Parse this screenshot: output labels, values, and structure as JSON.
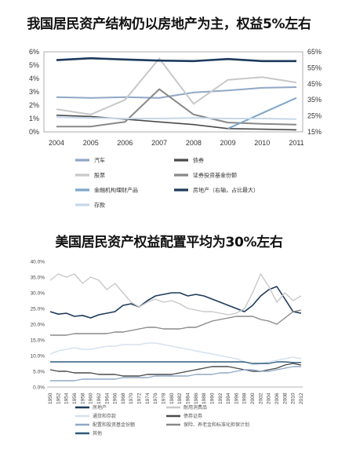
{
  "titles": {
    "chart1": "我国居民资产结构仍以房地产为主，权益5%左右",
    "chart2": "美国居民资产权益配置平均为30%左右"
  },
  "chart_data": [
    {
      "type": "line",
      "x": [
        "2004",
        "2005",
        "2006",
        "2007",
        "2008",
        "2009",
        "2010",
        "2011"
      ],
      "left_axis": {
        "ylim": [
          0,
          6
        ],
        "ticks": [
          "0%",
          "1%",
          "2%",
          "3%",
          "4%",
          "5%",
          "6%"
        ]
      },
      "right_axis": {
        "ylim": [
          15,
          65
        ],
        "ticks": [
          "15%",
          "25%",
          "35%",
          "45%",
          "55%",
          "65%"
        ]
      },
      "legend_position": "bottom",
      "series": [
        {
          "name": "汽车",
          "color": "#8fa8c6",
          "width": 2,
          "axis": "left",
          "values": [
            2.6,
            2.55,
            2.6,
            2.55,
            2.95,
            3.1,
            3.3,
            3.35
          ]
        },
        {
          "name": "债券",
          "color": "#4a4a4a",
          "width": 1.6,
          "axis": "left",
          "values": [
            1.25,
            1.15,
            0.95,
            0.75,
            0.55,
            0.25,
            0.2,
            0.15
          ]
        },
        {
          "name": "股票",
          "color": "#c8c8c8",
          "width": 2,
          "axis": "left",
          "values": [
            1.7,
            1.3,
            2.4,
            5.5,
            2.1,
            3.9,
            4.1,
            3.7
          ]
        },
        {
          "name": "证券投资基金份额",
          "color": "#888888",
          "width": 2,
          "axis": "left",
          "values": [
            0.4,
            0.4,
            0.75,
            3.2,
            1.3,
            0.7,
            0.6,
            0.55
          ]
        },
        {
          "name": "金融机构理财产品",
          "color": "#7ea6c8",
          "width": 2,
          "axis": "left",
          "values": [
            null,
            null,
            null,
            null,
            null,
            0.25,
            1.4,
            2.55
          ]
        },
        {
          "name": "房地产（右轴，占比最大）",
          "color": "#1d3a5c",
          "width": 2.6,
          "axis": "right",
          "values": [
            59.8,
            61.0,
            60.2,
            59.5,
            59.2,
            60.5,
            59.2,
            59.2
          ]
        },
        {
          "name": "存款",
          "color": "#c7d7ea",
          "width": 2,
          "axis": "left",
          "values": [
            1.1,
            1.05,
            1.0,
            1.0,
            1.05,
            1.0,
            1.0,
            0.95
          ]
        }
      ]
    },
    {
      "type": "line",
      "x": [
        "1950",
        "1952",
        "1954",
        "1956",
        "1958",
        "1960",
        "1962",
        "1964",
        "1966",
        "1968",
        "1970",
        "1972",
        "1974",
        "1976",
        "1978",
        "1980",
        "1982",
        "1984",
        "1986",
        "1988",
        "1990",
        "1992",
        "1994",
        "1996",
        "1998",
        "2000",
        "2002",
        "2004",
        "2006",
        "2008",
        "2010",
        "2012"
      ],
      "ylim": [
        0,
        40
      ],
      "y_ticks": [
        "0.0%",
        "5.0%",
        "10.0%",
        "15.0%",
        "20.0%",
        "25.0%",
        "30.0%",
        "35.0%",
        "40.0%"
      ],
      "legend_position": "bottom",
      "series": [
        {
          "name": "房地产",
          "color": "#1d3a5c",
          "width": 1.6,
          "values": [
            24,
            23.2,
            23.5,
            22.5,
            22.8,
            22,
            23,
            23.5,
            24,
            26,
            26.5,
            25.5,
            27.5,
            29,
            29.5,
            30,
            30,
            29,
            29.5,
            29,
            28,
            27,
            26,
            25,
            24,
            26,
            29,
            31,
            32,
            28,
            24,
            23.5
          ]
        },
        {
          "name": "耐用消费品",
          "color": "#c8c8c8",
          "width": 1.4,
          "values": [
            34,
            36,
            35,
            36,
            33,
            35,
            34,
            31,
            33,
            30,
            27,
            25.5,
            27,
            28,
            27,
            27.5,
            26.5,
            25,
            24.5,
            24,
            24,
            23.5,
            23,
            23.5,
            25,
            30,
            36,
            32,
            27,
            30,
            27.5,
            29
          ]
        },
        {
          "name": "通货和存款",
          "color": "#d6e2ef",
          "width": 1.6,
          "values": [
            10.5,
            11.5,
            12,
            12.5,
            12,
            12,
            12.5,
            13,
            13,
            13.5,
            13.5,
            13.5,
            14,
            14,
            13.5,
            13,
            12.5,
            12,
            11.5,
            11,
            10.5,
            10,
            9.5,
            9,
            8,
            7,
            7.5,
            8,
            8.5,
            9,
            9.5,
            9
          ]
        },
        {
          "name": "债券证券",
          "color": "#4a4a4a",
          "width": 1.4,
          "values": [
            5.5,
            5,
            5,
            4.5,
            4.5,
            4.5,
            4,
            4,
            4,
            3.5,
            3.5,
            3.5,
            4,
            4,
            4,
            4,
            4.5,
            5,
            5.5,
            6,
            6.5,
            6.5,
            6.5,
            6,
            5.5,
            5,
            5,
            5.5,
            6,
            7,
            7.5,
            7
          ]
        },
        {
          "name": "配置和投资基金份额",
          "color": "#8fa8c6",
          "width": 1.4,
          "values": [
            2,
            2,
            2,
            2,
            2.5,
            2.5,
            2.5,
            2.5,
            2.5,
            3,
            3,
            3,
            3,
            3.5,
            3.5,
            3.5,
            3.5,
            3.5,
            4,
            4,
            4,
            4.5,
            4.5,
            5,
            5.5,
            5.5,
            5,
            5,
            5.5,
            6,
            6.5,
            6.5
          ]
        },
        {
          "name": "保险、养老金和标准化担保计划",
          "color": "#888888",
          "width": 1.4,
          "values": [
            16.5,
            16.5,
            16.5,
            17,
            17,
            17,
            17,
            17,
            17.5,
            17.5,
            18,
            18.5,
            19,
            19,
            18.5,
            18.5,
            18.5,
            19,
            19,
            20,
            21,
            21.5,
            22,
            22.5,
            22.5,
            22.5,
            21.5,
            21,
            20,
            22,
            24,
            24.5
          ]
        },
        {
          "name": "其他",
          "color": "#2d5a7a",
          "width": 1.4,
          "values": [
            8,
            8,
            8,
            8,
            8,
            8,
            8,
            8,
            8,
            8,
            8,
            8,
            8,
            8,
            8,
            8,
            8,
            8,
            8,
            8,
            8,
            8,
            8,
            8,
            8,
            7.5,
            7.5,
            7.5,
            8,
            8,
            7.8,
            7.8
          ]
        }
      ]
    }
  ]
}
